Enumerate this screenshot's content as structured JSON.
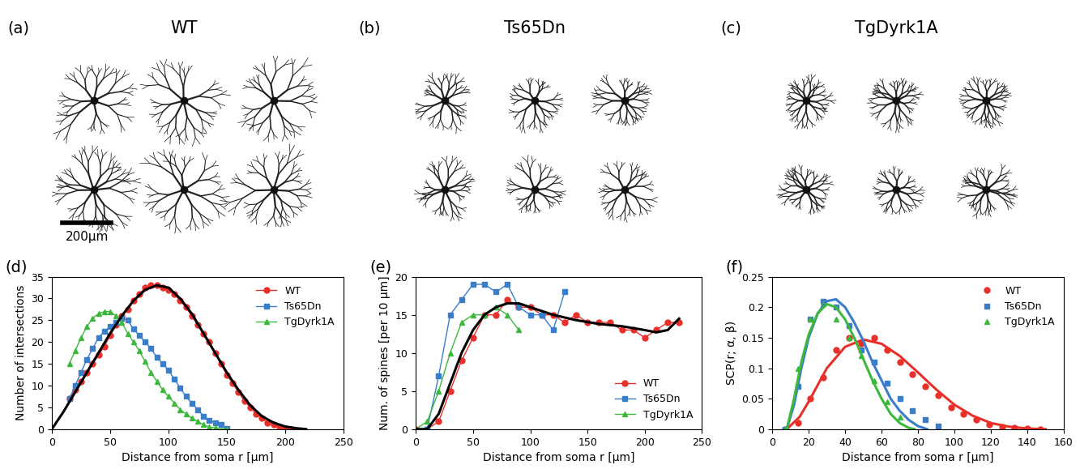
{
  "image_panels": [
    {
      "panel": "(a)",
      "title": "WT"
    },
    {
      "panel": "(b)",
      "title": "Ts65Dn"
    },
    {
      "panel": "(c)",
      "title": "TgDyrk1A"
    }
  ],
  "scale_bar": "200μm",
  "chart_data": [
    {
      "type": "line",
      "panel": "(d)",
      "x_label": "Distance from soma r [μm]",
      "y_label": "Number of intersections",
      "xlim": [
        0,
        250
      ],
      "xticks": [
        0,
        50,
        100,
        150,
        200,
        250
      ],
      "ylim": [
        0,
        35
      ],
      "yticks": [
        0,
        5,
        10,
        15,
        20,
        25,
        30,
        35
      ],
      "legend": "upper right",
      "series": [
        {
          "name": "WT",
          "color": "#e8302a",
          "marker": "circle",
          "line_style": "solid",
          "x": [
            15,
            20,
            25,
            30,
            35,
            40,
            45,
            50,
            55,
            60,
            65,
            70,
            75,
            80,
            85,
            90,
            95,
            100,
            105,
            110,
            115,
            120,
            125,
            130,
            135,
            140,
            145,
            150,
            155,
            160,
            165,
            170,
            175,
            180,
            185,
            190,
            195,
            200,
            205
          ],
          "values": [
            7,
            9,
            11,
            13,
            15,
            17,
            19,
            21.5,
            24,
            26,
            27.5,
            29.5,
            31,
            32.5,
            33,
            33,
            32.5,
            32,
            31,
            29.5,
            28,
            26,
            24,
            22,
            20,
            17.5,
            15,
            12.5,
            10.5,
            8.5,
            6.5,
            5,
            3.5,
            2.5,
            1.5,
            1,
            0.5,
            0.2,
            0
          ],
          "fit": {
            "color": "#000000",
            "x": [
              0,
              10,
              20,
              30,
              40,
              50,
              60,
              70,
              80,
              90,
              100,
              110,
              120,
              130,
              140,
              150,
              160,
              170,
              180,
              190,
              200,
              210,
              218
            ],
            "values": [
              0,
              4,
              8.5,
              13,
              17.5,
              22,
              26,
              29.5,
              32,
              33,
              32.5,
              30,
              26.5,
              22,
              17.5,
              13,
              9,
              5.5,
              3,
              1.5,
              0.6,
              0.2,
              0
            ]
          }
        },
        {
          "name": "Ts65Dn",
          "color": "#3a7dc9",
          "marker": "square",
          "line_style": "solid",
          "x": [
            15,
            20,
            25,
            30,
            35,
            40,
            45,
            50,
            55,
            60,
            65,
            70,
            75,
            80,
            85,
            90,
            95,
            100,
            105,
            110,
            115,
            120,
            125,
            130,
            135,
            140,
            145,
            150
          ],
          "values": [
            7,
            10,
            13,
            16,
            18.5,
            21,
            22.5,
            23.5,
            24.5,
            25.5,
            25,
            23,
            21.5,
            20,
            18.5,
            16.5,
            15,
            13.5,
            11.5,
            9.5,
            7.5,
            6,
            4.5,
            3,
            2,
            1.5,
            1,
            0.2
          ]
        },
        {
          "name": "TgDyrk1A",
          "color": "#3cb83c",
          "marker": "triangle",
          "line_style": "solid",
          "x": [
            15,
            20,
            25,
            30,
            35,
            40,
            45,
            50,
            55,
            60,
            65,
            70,
            75,
            80,
            85,
            90,
            95,
            100,
            105,
            110,
            115,
            120,
            125,
            130,
            135,
            140,
            150
          ],
          "values": [
            15,
            18,
            21,
            23.5,
            25.5,
            26.5,
            27,
            27,
            26,
            24.5,
            22,
            20,
            18,
            15.5,
            13,
            11,
            9,
            7.5,
            6,
            4.5,
            3.5,
            2.5,
            1.8,
            1,
            0.5,
            0.3,
            0
          ]
        }
      ]
    },
    {
      "type": "line",
      "panel": "(e)",
      "x_label": "Distance from soma r [μm]",
      "y_label": "Num. of spines [per 10 μm]",
      "xlim": [
        0,
        250
      ],
      "xticks": [
        0,
        50,
        100,
        150,
        200,
        250
      ],
      "ylim": [
        0,
        20
      ],
      "yticks": [
        0,
        5,
        10,
        15,
        20
      ],
      "legend": "lower right",
      "series": [
        {
          "name": "WT",
          "color": "#e8302a",
          "marker": "circle",
          "line_style": "solid",
          "x": [
            0,
            10,
            20,
            30,
            40,
            50,
            60,
            70,
            80,
            90,
            100,
            110,
            120,
            130,
            140,
            150,
            160,
            170,
            180,
            190,
            200,
            210,
            220,
            230
          ],
          "values": [
            0,
            0,
            1,
            5,
            9,
            12,
            15,
            15,
            17,
            16,
            16,
            15,
            15,
            14,
            15,
            14,
            14,
            14,
            13,
            13,
            12,
            13,
            14,
            14
          ],
          "fit": {
            "color": "#000000",
            "x": [
              0,
              10,
              20,
              30,
              40,
              50,
              60,
              70,
              80,
              90,
              100,
              120,
              140,
              160,
              180,
              200,
              210,
              220,
              230
            ],
            "values": [
              0,
              0,
              2,
              6,
              10,
              13,
              15,
              16,
              16.5,
              16.5,
              16,
              15,
              14.3,
              13.8,
              13.5,
              13,
              12.7,
              13,
              14.5
            ]
          }
        },
        {
          "name": "Ts65Dn",
          "color": "#3a7dc9",
          "marker": "square",
          "line_style": "solid",
          "x": [
            10,
            20,
            30,
            40,
            50,
            60,
            70,
            80,
            90,
            100,
            110,
            120,
            130
          ],
          "values": [
            0,
            7,
            15,
            17,
            19,
            19,
            18,
            19,
            16,
            15,
            15,
            13,
            18
          ]
        },
        {
          "name": "TgDyrk1A",
          "color": "#3cb83c",
          "marker": "triangle",
          "line_style": "solid",
          "x": [
            0,
            10,
            20,
            30,
            40,
            50,
            60,
            70,
            80,
            90
          ],
          "values": [
            0,
            1,
            5,
            10,
            14,
            15,
            15,
            16,
            15,
            13
          ]
        }
      ]
    },
    {
      "type": "scatter",
      "panel": "(f)",
      "x_label": "Distance from soma r [μm]",
      "y_label": "SCP(r; α, β)",
      "xlim": [
        0,
        160
      ],
      "xticks": [
        0,
        20,
        40,
        60,
        80,
        100,
        120,
        140,
        160
      ],
      "ylim": [
        0,
        0.25
      ],
      "yticks": [
        0,
        0.05,
        0.1,
        0.15,
        0.2,
        0.25
      ],
      "legend": "upper right",
      "series": [
        {
          "name": "WT",
          "color": "#e8302a",
          "marker": "circle",
          "line_style": "none",
          "x": [
            7,
            14,
            21,
            28,
            35,
            42,
            49,
            56,
            63,
            70,
            77,
            84,
            91,
            98,
            105,
            112,
            119,
            126,
            133,
            140,
            147
          ],
          "values": [
            0,
            0.01,
            0.05,
            0.085,
            0.13,
            0.15,
            0.14,
            0.15,
            0.13,
            0.11,
            0.09,
            0.07,
            0.055,
            0.035,
            0.025,
            0.015,
            0.008,
            0.004,
            0.002,
            0.001,
            0
          ],
          "fit": {
            "color": "#e8302a",
            "x": [
              8,
              15,
              20,
              30,
              40,
              50,
              60,
              70,
              80,
              90,
              100,
              110,
              120,
              130,
              140,
              150
            ],
            "values": [
              0,
              0.02,
              0.045,
              0.1,
              0.135,
              0.147,
              0.14,
              0.12,
              0.093,
              0.065,
              0.04,
              0.022,
              0.01,
              0.004,
              0.001,
              0
            ]
          }
        },
        {
          "name": "Ts65Dn",
          "color": "#3a7dc9",
          "marker": "square",
          "line_style": "none",
          "x": [
            7,
            14,
            21,
            28,
            35,
            42,
            49,
            56,
            63,
            70,
            77,
            84,
            91
          ],
          "values": [
            0,
            0.07,
            0.18,
            0.21,
            0.2,
            0.17,
            0.13,
            0.11,
            0.075,
            0.05,
            0.03,
            0.015,
            0.005
          ],
          "fit": {
            "color": "#3a7dc9",
            "x": [
              8,
              12,
              16,
              20,
              25,
              30,
              35,
              40,
              45,
              50,
              55,
              60,
              65,
              70,
              75,
              80,
              85
            ],
            "values": [
              0,
              0.04,
              0.1,
              0.15,
              0.19,
              0.21,
              0.213,
              0.2,
              0.175,
              0.145,
              0.11,
              0.08,
              0.05,
              0.03,
              0.015,
              0.005,
              0
            ]
          }
        },
        {
          "name": "TgDyrk1A",
          "color": "#3cb83c",
          "marker": "triangle",
          "line_style": "none",
          "x": [
            7,
            14,
            21,
            28,
            35,
            42,
            49,
            56,
            63,
            70
          ],
          "values": [
            0,
            0.1,
            0.18,
            0.205,
            0.18,
            0.15,
            0.12,
            0.08,
            0.045,
            0.02
          ],
          "fit": {
            "color": "#3cb83c",
            "x": [
              8,
              12,
              16,
              20,
              25,
              30,
              35,
              40,
              45,
              50,
              55,
              60,
              65,
              70,
              75,
              78
            ],
            "values": [
              0,
              0.05,
              0.11,
              0.155,
              0.19,
              0.205,
              0.2,
              0.18,
              0.15,
              0.115,
              0.08,
              0.05,
              0.025,
              0.01,
              0.002,
              0
            ]
          }
        }
      ]
    }
  ]
}
